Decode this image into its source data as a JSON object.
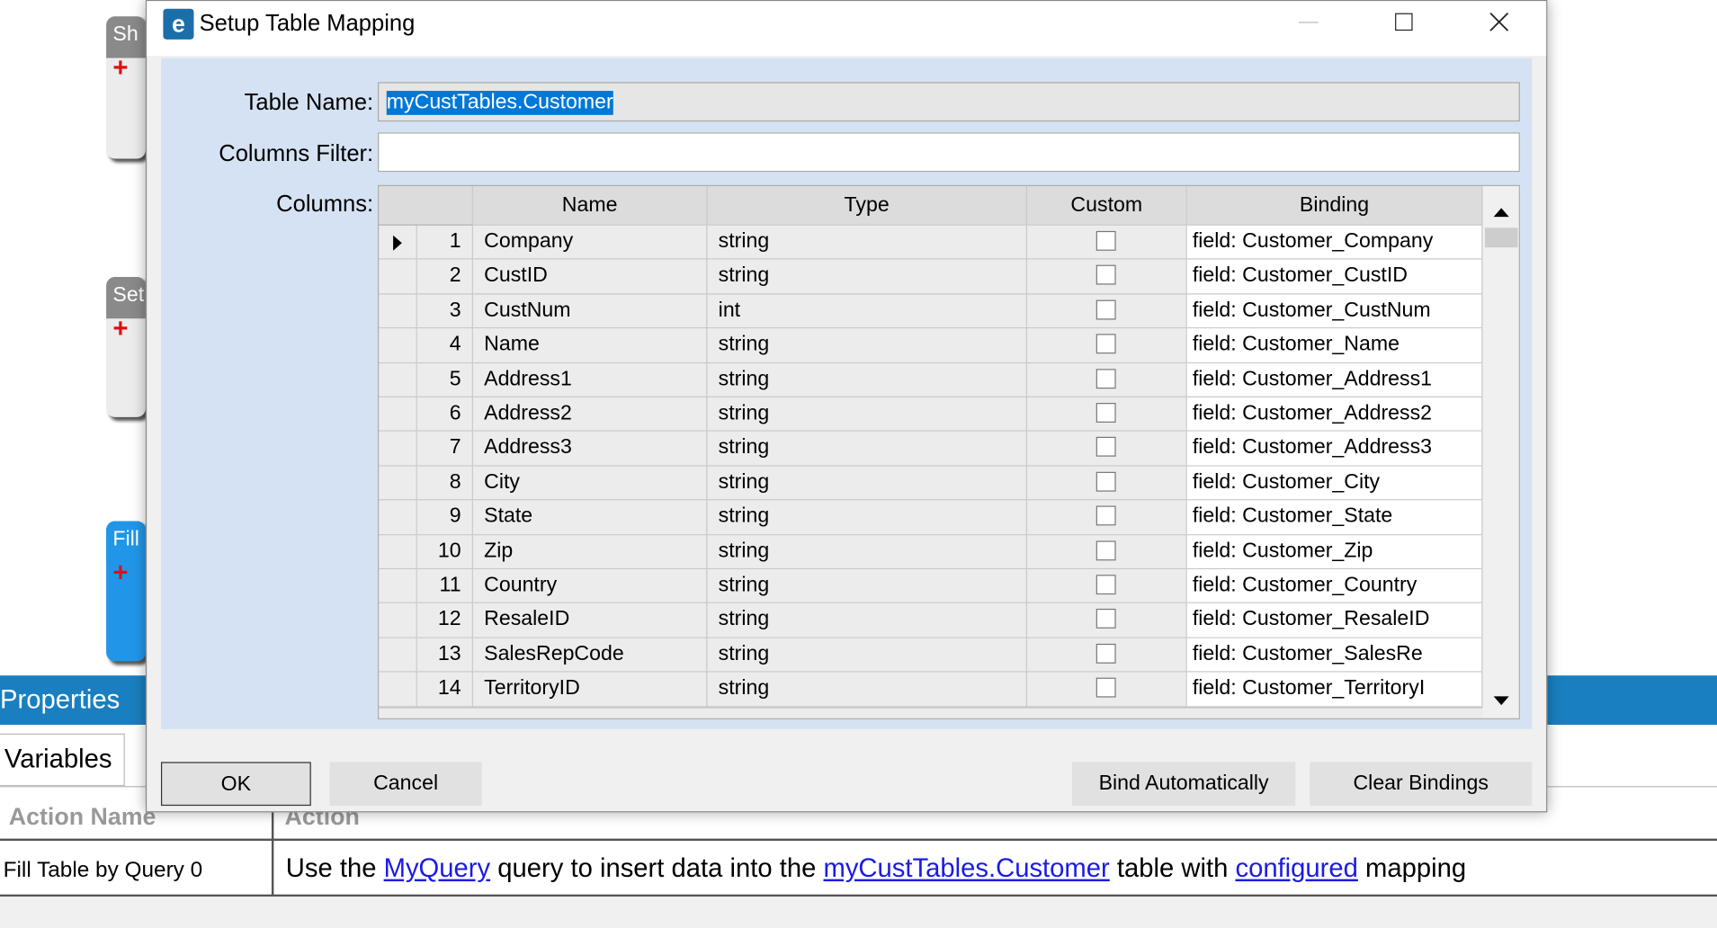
{
  "background": {
    "cards": [
      "Sh",
      "Set",
      "Fill"
    ],
    "panel_title": "Properties",
    "tab": "Variables",
    "actions_table": {
      "headers": [
        "Action Name",
        "Action"
      ],
      "row_name": "Fill Table by Query 0",
      "action_segments": [
        {
          "text": "Use the "
        },
        {
          "text": "MyQuery",
          "link": true
        },
        {
          "text": " query to insert data into the "
        },
        {
          "text": "myCustTables.Customer",
          "link": true
        },
        {
          "text": " table with "
        },
        {
          "text": "configured",
          "link": true
        },
        {
          "text": " mapping"
        }
      ]
    }
  },
  "dialog": {
    "title": "Setup Table Mapping",
    "table_name_label": "Table Name:",
    "table_name_value": "myCustTables.Customer",
    "columns_filter_label": "Columns Filter:",
    "columns_label": "Columns:",
    "grid": {
      "headers": [
        "Name",
        "Type",
        "Custom",
        "Binding"
      ],
      "selected_row": 0,
      "rows": [
        {
          "index": 1,
          "name": "Company",
          "type": "string",
          "custom": false,
          "binding": "field: Customer_Company"
        },
        {
          "index": 2,
          "name": "CustID",
          "type": "string",
          "custom": false,
          "binding": "field: Customer_CustID"
        },
        {
          "index": 3,
          "name": "CustNum",
          "type": "int",
          "custom": false,
          "binding": "field: Customer_CustNum"
        },
        {
          "index": 4,
          "name": "Name",
          "type": "string",
          "custom": false,
          "binding": "field: Customer_Name"
        },
        {
          "index": 5,
          "name": "Address1",
          "type": "string",
          "custom": false,
          "binding": "field: Customer_Address1"
        },
        {
          "index": 6,
          "name": "Address2",
          "type": "string",
          "custom": false,
          "binding": "field: Customer_Address2"
        },
        {
          "index": 7,
          "name": "Address3",
          "type": "string",
          "custom": false,
          "binding": "field: Customer_Address3"
        },
        {
          "index": 8,
          "name": "City",
          "type": "string",
          "custom": false,
          "binding": "field: Customer_City"
        },
        {
          "index": 9,
          "name": "State",
          "type": "string",
          "custom": false,
          "binding": "field: Customer_State"
        },
        {
          "index": 10,
          "name": "Zip",
          "type": "string",
          "custom": false,
          "binding": "field: Customer_Zip"
        },
        {
          "index": 11,
          "name": "Country",
          "type": "string",
          "custom": false,
          "binding": "field: Customer_Country"
        },
        {
          "index": 12,
          "name": "ResaleID",
          "type": "string",
          "custom": false,
          "binding": "field: Customer_ResaleID"
        },
        {
          "index": 13,
          "name": "SalesRepCode",
          "type": "string",
          "custom": false,
          "binding": "field: Customer_SalesRe"
        },
        {
          "index": 14,
          "name": "TerritoryID",
          "type": "string",
          "custom": false,
          "binding": "field: Customer_TerritoryI"
        }
      ]
    },
    "buttons": [
      "OK",
      "Cancel",
      "Bind Automatically",
      "Clear Bindings"
    ]
  }
}
